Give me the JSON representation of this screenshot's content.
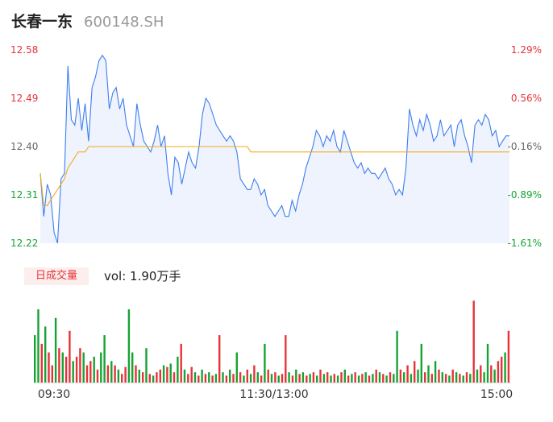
{
  "header": {
    "name": "长春一东",
    "code": "600148.SH"
  },
  "volume_panel": {
    "period_label": "日成交量",
    "vol_text": "vol: 1.90万手"
  },
  "colors": {
    "price_line": "#3d7ef0",
    "avg_line": "#f3a91c",
    "up": "#e5333a",
    "down": "#16a334",
    "neutral": "#666666",
    "fill": "#eef3fd"
  },
  "chart_data": [
    {
      "type": "line",
      "title": "",
      "y_ticks_left": [
        "12.58",
        "12.49",
        "12.40",
        "12.31",
        "12.22"
      ],
      "y_ticks_right": [
        "1.29%",
        "0.56%",
        "-0.16%",
        "-0.89%",
        "-1.61%"
      ],
      "ylim": [
        12.22,
        12.58
      ],
      "x_ticks": [
        "09:30",
        "11:30/13:00",
        "15:00"
      ],
      "series": [
        {
          "values": [
            12.35,
            12.27,
            12.33,
            12.31,
            12.24,
            12.22,
            12.34,
            12.35,
            12.55,
            12.45,
            12.44,
            12.49,
            12.43,
            12.48,
            12.41,
            12.51,
            12.53,
            12.56,
            12.57,
            12.56,
            12.47,
            12.5,
            12.51,
            12.47,
            12.49,
            12.44,
            12.42,
            12.4,
            12.48,
            12.44,
            12.41,
            12.4,
            12.39,
            12.41,
            12.44,
            12.4,
            12.42,
            12.35,
            12.31,
            12.38,
            12.37,
            12.33,
            12.36,
            12.39,
            12.37,
            12.36,
            12.4,
            12.46,
            12.49,
            12.48,
            12.46,
            12.44,
            12.43,
            12.42,
            12.41,
            12.42,
            12.41,
            12.39,
            12.34,
            12.33,
            12.32,
            12.32,
            12.34,
            12.33,
            12.31,
            12.32,
            12.29,
            12.28,
            12.27,
            12.28,
            12.29,
            12.27,
            12.27,
            12.3,
            12.28,
            12.31,
            12.33,
            12.36,
            12.38,
            12.4,
            12.43,
            12.42,
            12.4,
            12.42,
            12.41,
            12.43,
            12.4,
            12.39,
            12.43,
            12.41,
            12.39,
            12.37,
            12.36,
            12.37,
            12.35,
            12.36,
            12.35,
            12.35,
            12.34,
            12.35,
            12.36,
            12.34,
            12.33,
            12.31,
            12.32,
            12.31,
            12.36,
            12.47,
            12.44,
            12.42,
            12.45,
            12.43,
            12.46,
            12.44,
            12.41,
            12.42,
            12.45,
            12.42,
            12.43,
            12.44,
            12.4,
            12.44,
            12.45,
            12.42,
            12.4,
            12.37,
            12.44,
            12.45,
            12.44,
            12.46,
            12.45,
            12.42,
            12.43,
            12.4,
            12.41,
            12.42,
            12.42
          ],
          "note_values": "5-min sampled trace approximated from the chart"
        },
        {
          "values": [
            12.35,
            12.29,
            12.29,
            12.3,
            12.31,
            12.32,
            12.33,
            12.34,
            12.36,
            12.37,
            12.38,
            12.39,
            12.39,
            12.39,
            12.4,
            12.4,
            12.4,
            12.4,
            12.4,
            12.4,
            12.4,
            12.4,
            12.4,
            12.4,
            12.4,
            12.4,
            12.4,
            12.4,
            12.4,
            12.4,
            12.4,
            12.4,
            12.4,
            12.4,
            12.4,
            12.4,
            12.4,
            12.4,
            12.4,
            12.4,
            12.4,
            12.4,
            12.4,
            12.4,
            12.4,
            12.4,
            12.4,
            12.4,
            12.4,
            12.4,
            12.4,
            12.4,
            12.4,
            12.4,
            12.4,
            12.4,
            12.4,
            12.4,
            12.4,
            12.4,
            12.4,
            12.39,
            12.39,
            12.39,
            12.39,
            12.39,
            12.39,
            12.39,
            12.39,
            12.39,
            12.39,
            12.39,
            12.39,
            12.39,
            12.39,
            12.39,
            12.39,
            12.39,
            12.39,
            12.39,
            12.39,
            12.39,
            12.39,
            12.39,
            12.39,
            12.39,
            12.39,
            12.39,
            12.39,
            12.39,
            12.39,
            12.39,
            12.39,
            12.39,
            12.39,
            12.39,
            12.39,
            12.39,
            12.39,
            12.39,
            12.39,
            12.39,
            12.39,
            12.39,
            12.39,
            12.39,
            12.39,
            12.39,
            12.39,
            12.39,
            12.39,
            12.39,
            12.39,
            12.39,
            12.39,
            12.39,
            12.39,
            12.39,
            12.39,
            12.39,
            12.39,
            12.39,
            12.39,
            12.39,
            12.39,
            12.39,
            12.39,
            12.39,
            12.39,
            12.39,
            12.39,
            12.39,
            12.39,
            12.39,
            12.39,
            12.39,
            12.39
          ]
        }
      ]
    },
    {
      "type": "bar",
      "title": "",
      "bars": [
        {
          "v": 0.55,
          "c": "down"
        },
        {
          "v": 0.85,
          "c": "down"
        },
        {
          "v": 0.45,
          "c": "up"
        },
        {
          "v": 0.65,
          "c": "down"
        },
        {
          "v": 0.35,
          "c": "up"
        },
        {
          "v": 0.2,
          "c": "up"
        },
        {
          "v": 0.75,
          "c": "down"
        },
        {
          "v": 0.4,
          "c": "up"
        },
        {
          "v": 0.35,
          "c": "down"
        },
        {
          "v": 0.3,
          "c": "up"
        },
        {
          "v": 0.6,
          "c": "up"
        },
        {
          "v": 0.25,
          "c": "down"
        },
        {
          "v": 0.3,
          "c": "up"
        },
        {
          "v": 0.4,
          "c": "up"
        },
        {
          "v": 0.35,
          "c": "down"
        },
        {
          "v": 0.2,
          "c": "up"
        },
        {
          "v": 0.25,
          "c": "up"
        },
        {
          "v": 0.3,
          "c": "down"
        },
        {
          "v": 0.15,
          "c": "up"
        },
        {
          "v": 0.35,
          "c": "down"
        },
        {
          "v": 0.55,
          "c": "down"
        },
        {
          "v": 0.2,
          "c": "up"
        },
        {
          "v": 0.25,
          "c": "down"
        },
        {
          "v": 0.2,
          "c": "up"
        },
        {
          "v": 0.15,
          "c": "down"
        },
        {
          "v": 0.1,
          "c": "up"
        },
        {
          "v": 0.18,
          "c": "up"
        },
        {
          "v": 0.85,
          "c": "down"
        },
        {
          "v": 0.35,
          "c": "down"
        },
        {
          "v": 0.2,
          "c": "up"
        },
        {
          "v": 0.15,
          "c": "down"
        },
        {
          "v": 0.12,
          "c": "up"
        },
        {
          "v": 0.4,
          "c": "down"
        },
        {
          "v": 0.1,
          "c": "up"
        },
        {
          "v": 0.08,
          "c": "down"
        },
        {
          "v": 0.12,
          "c": "up"
        },
        {
          "v": 0.15,
          "c": "up"
        },
        {
          "v": 0.2,
          "c": "down"
        },
        {
          "v": 0.18,
          "c": "up"
        },
        {
          "v": 0.22,
          "c": "down"
        },
        {
          "v": 0.12,
          "c": "up"
        },
        {
          "v": 0.3,
          "c": "down"
        },
        {
          "v": 0.45,
          "c": "up"
        },
        {
          "v": 0.15,
          "c": "down"
        },
        {
          "v": 0.1,
          "c": "up"
        },
        {
          "v": 0.18,
          "c": "up"
        },
        {
          "v": 0.12,
          "c": "down"
        },
        {
          "v": 0.08,
          "c": "up"
        },
        {
          "v": 0.15,
          "c": "down"
        },
        {
          "v": 0.1,
          "c": "up"
        },
        {
          "v": 0.12,
          "c": "down"
        },
        {
          "v": 0.08,
          "c": "up"
        },
        {
          "v": 0.1,
          "c": "down"
        },
        {
          "v": 0.55,
          "c": "up"
        },
        {
          "v": 0.12,
          "c": "down"
        },
        {
          "v": 0.08,
          "c": "up"
        },
        {
          "v": 0.15,
          "c": "down"
        },
        {
          "v": 0.1,
          "c": "up"
        },
        {
          "v": 0.35,
          "c": "down"
        },
        {
          "v": 0.12,
          "c": "up"
        },
        {
          "v": 0.08,
          "c": "down"
        },
        {
          "v": 0.15,
          "c": "up"
        },
        {
          "v": 0.1,
          "c": "down"
        },
        {
          "v": 0.2,
          "c": "up"
        },
        {
          "v": 0.12,
          "c": "down"
        },
        {
          "v": 0.08,
          "c": "up"
        },
        {
          "v": 0.45,
          "c": "down"
        },
        {
          "v": 0.15,
          "c": "up"
        },
        {
          "v": 0.1,
          "c": "down"
        },
        {
          "v": 0.12,
          "c": "up"
        },
        {
          "v": 0.08,
          "c": "down"
        },
        {
          "v": 0.1,
          "c": "up"
        },
        {
          "v": 0.55,
          "c": "up"
        },
        {
          "v": 0.12,
          "c": "down"
        },
        {
          "v": 0.08,
          "c": "up"
        },
        {
          "v": 0.15,
          "c": "down"
        },
        {
          "v": 0.1,
          "c": "up"
        },
        {
          "v": 0.12,
          "c": "down"
        },
        {
          "v": 0.08,
          "c": "up"
        },
        {
          "v": 0.1,
          "c": "down"
        },
        {
          "v": 0.12,
          "c": "up"
        },
        {
          "v": 0.08,
          "c": "down"
        },
        {
          "v": 0.15,
          "c": "up"
        },
        {
          "v": 0.1,
          "c": "down"
        },
        {
          "v": 0.12,
          "c": "up"
        },
        {
          "v": 0.08,
          "c": "down"
        },
        {
          "v": 0.1,
          "c": "up"
        },
        {
          "v": 0.08,
          "c": "down"
        },
        {
          "v": 0.12,
          "c": "up"
        },
        {
          "v": 0.15,
          "c": "down"
        },
        {
          "v": 0.08,
          "c": "up"
        },
        {
          "v": 0.1,
          "c": "down"
        },
        {
          "v": 0.12,
          "c": "up"
        },
        {
          "v": 0.08,
          "c": "down"
        },
        {
          "v": 0.1,
          "c": "up"
        },
        {
          "v": 0.12,
          "c": "down"
        },
        {
          "v": 0.08,
          "c": "up"
        },
        {
          "v": 0.1,
          "c": "down"
        },
        {
          "v": 0.15,
          "c": "up"
        },
        {
          "v": 0.12,
          "c": "down"
        },
        {
          "v": 0.1,
          "c": "up"
        },
        {
          "v": 0.08,
          "c": "down"
        },
        {
          "v": 0.12,
          "c": "up"
        },
        {
          "v": 0.1,
          "c": "down"
        },
        {
          "v": 0.6,
          "c": "down"
        },
        {
          "v": 0.15,
          "c": "up"
        },
        {
          "v": 0.12,
          "c": "down"
        },
        {
          "v": 0.2,
          "c": "up"
        },
        {
          "v": 0.1,
          "c": "down"
        },
        {
          "v": 0.25,
          "c": "up"
        },
        {
          "v": 0.15,
          "c": "down"
        },
        {
          "v": 0.45,
          "c": "down"
        },
        {
          "v": 0.12,
          "c": "up"
        },
        {
          "v": 0.2,
          "c": "down"
        },
        {
          "v": 0.1,
          "c": "up"
        },
        {
          "v": 0.25,
          "c": "down"
        },
        {
          "v": 0.15,
          "c": "up"
        },
        {
          "v": 0.12,
          "c": "down"
        },
        {
          "v": 0.1,
          "c": "up"
        },
        {
          "v": 0.08,
          "c": "down"
        },
        {
          "v": 0.15,
          "c": "up"
        },
        {
          "v": 0.12,
          "c": "down"
        },
        {
          "v": 0.1,
          "c": "up"
        },
        {
          "v": 0.08,
          "c": "down"
        },
        {
          "v": 0.12,
          "c": "up"
        },
        {
          "v": 0.1,
          "c": "down"
        },
        {
          "v": 0.95,
          "c": "up"
        },
        {
          "v": 0.15,
          "c": "down"
        },
        {
          "v": 0.2,
          "c": "up"
        },
        {
          "v": 0.12,
          "c": "down"
        },
        {
          "v": 0.45,
          "c": "down"
        },
        {
          "v": 0.2,
          "c": "up"
        },
        {
          "v": 0.15,
          "c": "down"
        },
        {
          "v": 0.25,
          "c": "up"
        },
        {
          "v": 0.3,
          "c": "up"
        },
        {
          "v": 0.35,
          "c": "down"
        },
        {
          "v": 0.6,
          "c": "up"
        }
      ]
    }
  ]
}
